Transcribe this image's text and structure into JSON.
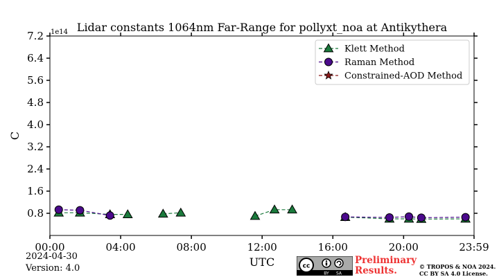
{
  "chart_data": {
    "type": "line",
    "title": "Lidar constants 1064nm Far-Range for pollyxt_noa at Antikythera",
    "xlabel": "UTC",
    "ylabel": "C",
    "y_offset_label": "1e14",
    "x_ticks": [
      "00:00",
      "04:00",
      "08:00",
      "12:00",
      "16:00",
      "20:00",
      "23:59"
    ],
    "y_ticks": [
      "0.8",
      "1.6",
      "2.4",
      "3.2",
      "4.0",
      "4.8",
      "5.6",
      "6.4",
      "7.2"
    ],
    "xlim_hours": [
      0,
      23.983
    ],
    "ylim": [
      0,
      7.2
    ],
    "y_unit_scale": "1e14",
    "grid": false,
    "legend_position": "top-right",
    "series": [
      {
        "name": "Klett Method",
        "color": "#1b7a3c",
        "marker": "triangle",
        "segments": [
          [
            [
              0.5,
              0.82
            ],
            [
              1.7,
              0.82
            ],
            [
              3.4,
              0.76
            ],
            [
              4.4,
              0.76
            ]
          ],
          [
            [
              6.4,
              0.78
            ],
            [
              7.4,
              0.82
            ]
          ],
          [
            [
              11.6,
              0.7
            ],
            [
              12.7,
              0.93
            ],
            [
              13.7,
              0.93
            ]
          ],
          [
            [
              16.7,
              0.66
            ],
            [
              19.2,
              0.6
            ],
            [
              20.3,
              0.6
            ],
            [
              21.0,
              0.59
            ],
            [
              23.5,
              0.6
            ]
          ]
        ]
      },
      {
        "name": "Raman Method",
        "color": "#4b0a8c",
        "marker": "circle",
        "segments": [
          [
            [
              0.5,
              0.93
            ],
            [
              1.7,
              0.91
            ],
            [
              3.4,
              0.72
            ]
          ],
          [
            [
              16.7,
              0.67
            ],
            [
              19.2,
              0.65
            ],
            [
              20.3,
              0.68
            ],
            [
              21.0,
              0.64
            ],
            [
              23.5,
              0.66
            ]
          ]
        ]
      },
      {
        "name": "Constrained-AOD Method",
        "color": "#8b1a1a",
        "marker": "star",
        "segments": []
      }
    ]
  },
  "footer": {
    "date": "2024-04-30",
    "version": "Version: 4.0",
    "preliminary": "Preliminary",
    "results": "Results.",
    "copyright_line1": "© TROPOS & NOA 2024.",
    "copyright_line2": "CC BY SA 4.0 License.",
    "license_badge": {
      "cc": "cc",
      "by": "BY",
      "sa": "SA"
    }
  }
}
